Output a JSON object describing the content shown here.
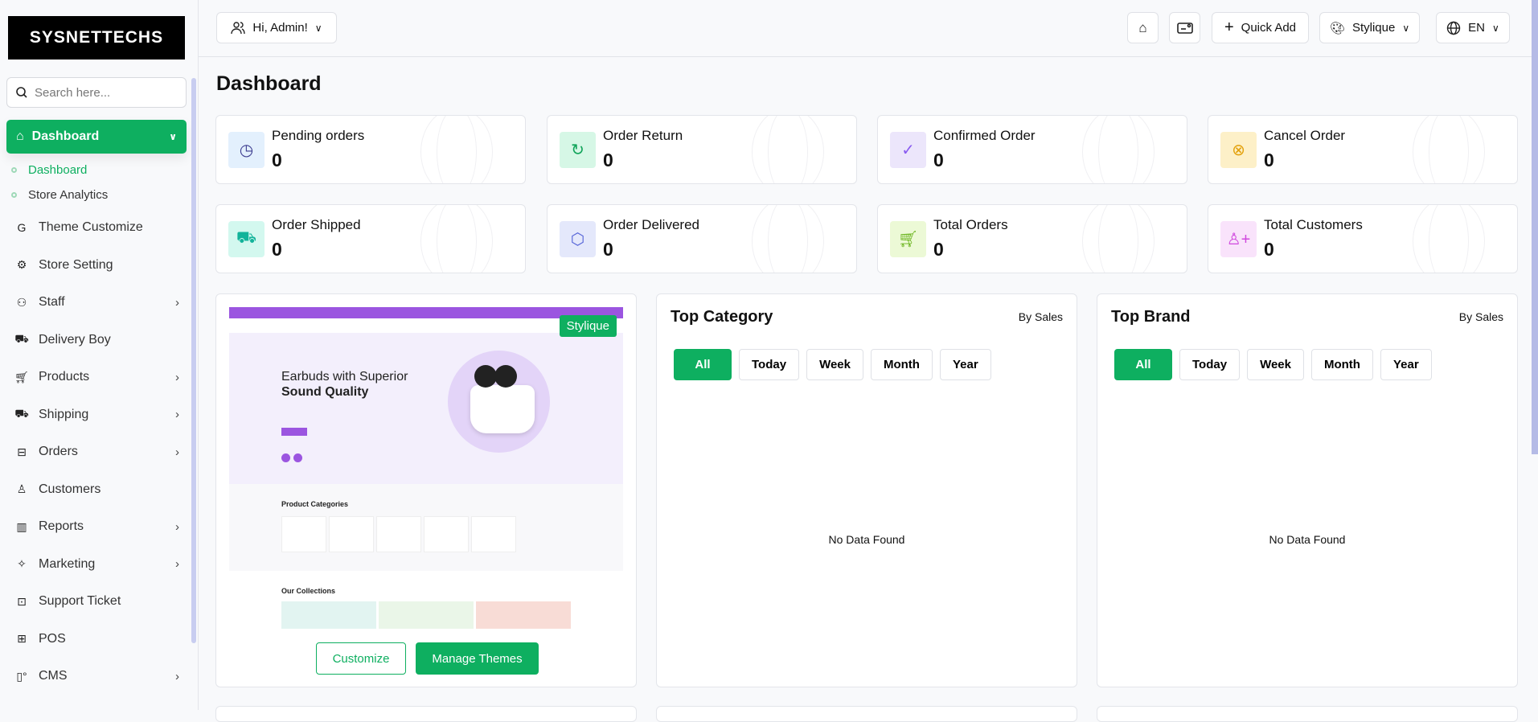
{
  "brand": {
    "logo_text": "SYSNETTECHS"
  },
  "search": {
    "placeholder": "Search here..."
  },
  "sidebar": {
    "active": {
      "label": "Dashboard"
    },
    "sub_items": [
      {
        "label": "Dashboard"
      },
      {
        "label": "Store Analytics"
      }
    ],
    "items": [
      {
        "label": "Theme Customize",
        "icon": "theme-icon",
        "chevron": false
      },
      {
        "label": "Store Setting",
        "icon": "gear-icon",
        "chevron": false
      },
      {
        "label": "Staff",
        "icon": "users-icon",
        "chevron": true
      },
      {
        "label": "Delivery Boy",
        "icon": "truck-icon",
        "chevron": false
      },
      {
        "label": "Products",
        "icon": "cart-icon",
        "chevron": true
      },
      {
        "label": "Shipping",
        "icon": "shipping-icon",
        "chevron": true
      },
      {
        "label": "Orders",
        "icon": "briefcase-icon",
        "chevron": true
      },
      {
        "label": "Customers",
        "icon": "user-icon",
        "chevron": false
      },
      {
        "label": "Reports",
        "icon": "bar-chart-icon",
        "chevron": true
      },
      {
        "label": "Marketing",
        "icon": "party-icon",
        "chevron": true
      },
      {
        "label": "Support Ticket",
        "icon": "ticket-icon",
        "chevron": false
      },
      {
        "label": "POS",
        "icon": "pos-icon",
        "chevron": false
      },
      {
        "label": "CMS",
        "icon": "cms-icon",
        "chevron": true
      }
    ]
  },
  "header": {
    "greeting": "Hi, Admin!",
    "quick_add": "Quick Add",
    "theme": "Stylique",
    "language": "EN"
  },
  "page": {
    "title": "Dashboard"
  },
  "stats": [
    {
      "label": "Pending orders",
      "value": "0",
      "icon": "clock-icon",
      "bg": "#e3f0fd",
      "fg": "#3b3b8f"
    },
    {
      "label": "Order Return",
      "value": "0",
      "icon": "return-icon",
      "bg": "#d6f7e6",
      "fg": "#11a45a"
    },
    {
      "label": "Confirmed Order",
      "value": "0",
      "icon": "check-circle-icon",
      "bg": "#ece6fb",
      "fg": "#8a5cf0"
    },
    {
      "label": "Cancel Order",
      "value": "0",
      "icon": "x-circle-icon",
      "bg": "#fdf0c8",
      "fg": "#e3a10c"
    },
    {
      "label": "Order Shipped",
      "value": "0",
      "icon": "truck-icon",
      "bg": "#d3f8ef",
      "fg": "#12b39a"
    },
    {
      "label": "Order Delivered",
      "value": "0",
      "icon": "box-icon",
      "bg": "#e4e8fb",
      "fg": "#5564d8"
    },
    {
      "label": "Total Orders",
      "value": "0",
      "icon": "cart-icon",
      "bg": "#ecf9d6",
      "fg": "#6bb51f"
    },
    {
      "label": "Total Customers",
      "value": "0",
      "icon": "user-plus-icon",
      "bg": "#f9e3fb",
      "fg": "#d048de"
    }
  ],
  "theme_card": {
    "badge": "Stylique",
    "preview_headline_1": "Earbuds with Superior",
    "preview_headline_2": "Sound Quality",
    "preview_section_1": "Product Categories",
    "preview_section_2": "Our Collections",
    "customize": "Customize",
    "manage": "Manage Themes"
  },
  "panels": [
    {
      "title": "Top Category",
      "subtitle": "By Sales",
      "filters": [
        "All",
        "Today",
        "Week",
        "Month",
        "Year"
      ],
      "active_filter": "All",
      "empty": "No Data Found"
    },
    {
      "title": "Top Brand",
      "subtitle": "By Sales",
      "filters": [
        "All",
        "Today",
        "Week",
        "Month",
        "Year"
      ],
      "active_filter": "All",
      "empty": "No Data Found"
    }
  ],
  "colors": {
    "accent": "#0eaf60",
    "preview_purple": "#9b55e0"
  }
}
